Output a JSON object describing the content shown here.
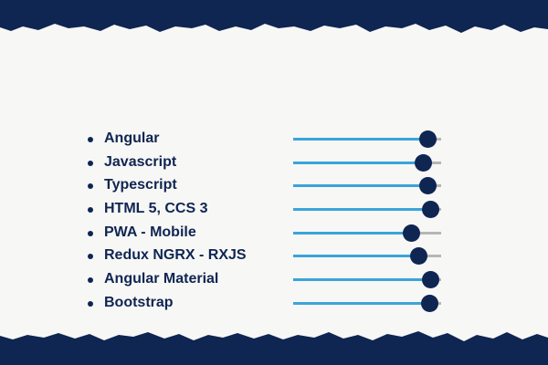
{
  "colors": {
    "navy": "#0f2552",
    "paper": "#f7f7f5",
    "accent": "#3aa4da",
    "track": "#b6b6b6"
  },
  "skills": [
    {
      "label": "Angular",
      "level": 0.91
    },
    {
      "label": "Javascript",
      "level": 0.88
    },
    {
      "label": "Typescript",
      "level": 0.91
    },
    {
      "label": "HTML 5, CCS 3",
      "level": 0.93
    },
    {
      "label": "PWA - Mobile",
      "level": 0.8
    },
    {
      "label": "Redux NGRX - RXJS",
      "level": 0.85
    },
    {
      "label": "Angular Material",
      "level": 0.93
    },
    {
      "label": "Bootstrap",
      "level": 0.92
    }
  ]
}
